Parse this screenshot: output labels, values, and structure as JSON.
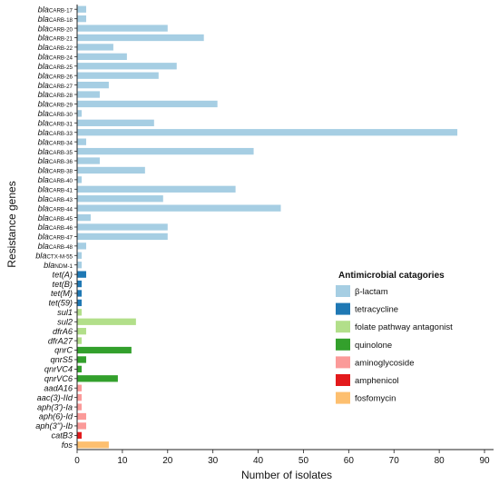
{
  "chart_data": {
    "type": "bar",
    "orientation": "horizontal",
    "xlabel": "Number of isolates",
    "ylabel": "Resistance genes",
    "xlim": [
      0,
      92
    ],
    "xticks": [
      0,
      10,
      20,
      30,
      40,
      50,
      60,
      70,
      80,
      90
    ],
    "grid": false,
    "legend": {
      "title": "Antimicrobial catagories",
      "placement": "bottom-right",
      "entries": [
        {
          "name": "β-lactam",
          "color": "#a6cee3"
        },
        {
          "name": "tetracycline",
          "color": "#1f78b4"
        },
        {
          "name": "folate pathway antagonist",
          "color": "#b2df8a"
        },
        {
          "name": "quinolone",
          "color": "#33a02c"
        },
        {
          "name": "aminoglycoside",
          "color": "#fb9a99"
        },
        {
          "name": "amphenicol",
          "color": "#e31a1c"
        },
        {
          "name": "fosfomycin",
          "color": "#fdbf6f"
        }
      ]
    },
    "bars": [
      {
        "prefix": "bla",
        "sub": "CARB-17",
        "value": 2,
        "category": 0
      },
      {
        "prefix": "bla",
        "sub": "CARB-18",
        "value": 2,
        "category": 0
      },
      {
        "prefix": "bla",
        "sub": "CARB-20",
        "value": 20,
        "category": 0
      },
      {
        "prefix": "bla",
        "sub": "CARB-21",
        "value": 28,
        "category": 0
      },
      {
        "prefix": "bla",
        "sub": "CARB-22",
        "value": 8,
        "category": 0
      },
      {
        "prefix": "bla",
        "sub": "CARB-24",
        "value": 11,
        "category": 0
      },
      {
        "prefix": "bla",
        "sub": "CARB-25",
        "value": 22,
        "category": 0
      },
      {
        "prefix": "bla",
        "sub": "CARB-26",
        "value": 18,
        "category": 0
      },
      {
        "prefix": "bla",
        "sub": "CARB-27",
        "value": 7,
        "category": 0
      },
      {
        "prefix": "bla",
        "sub": "CARB-28",
        "value": 5,
        "category": 0
      },
      {
        "prefix": "bla",
        "sub": "CARB-29",
        "value": 31,
        "category": 0
      },
      {
        "prefix": "bla",
        "sub": "CARB-30",
        "value": 1,
        "category": 0
      },
      {
        "prefix": "bla",
        "sub": "CARB-31",
        "value": 17,
        "category": 0
      },
      {
        "prefix": "bla",
        "sub": "CARB-33",
        "value": 84,
        "category": 0
      },
      {
        "prefix": "bla",
        "sub": "CARB-34",
        "value": 2,
        "category": 0
      },
      {
        "prefix": "bla",
        "sub": "CARB-35",
        "value": 39,
        "category": 0
      },
      {
        "prefix": "bla",
        "sub": "CARB-36",
        "value": 5,
        "category": 0
      },
      {
        "prefix": "bla",
        "sub": "CARB-38",
        "value": 15,
        "category": 0
      },
      {
        "prefix": "bla",
        "sub": "CARB-40",
        "value": 1,
        "category": 0
      },
      {
        "prefix": "bla",
        "sub": "CARB-41",
        "value": 35,
        "category": 0
      },
      {
        "prefix": "bla",
        "sub": "CARB-43",
        "value": 19,
        "category": 0
      },
      {
        "prefix": "bla",
        "sub": "CARB-44",
        "value": 45,
        "category": 0
      },
      {
        "prefix": "bla",
        "sub": "CARB-45",
        "value": 3,
        "category": 0
      },
      {
        "prefix": "bla",
        "sub": "CARB-46",
        "value": 20,
        "category": 0
      },
      {
        "prefix": "bla",
        "sub": "CARB-47",
        "value": 20,
        "category": 0
      },
      {
        "prefix": "bla",
        "sub": "CARB-48",
        "value": 2,
        "category": 0
      },
      {
        "prefix": "bla",
        "sub": "CTX-M-55",
        "value": 1,
        "category": 0
      },
      {
        "prefix": "bla",
        "sub": "NDM-1",
        "value": 1,
        "category": 0
      },
      {
        "prefix": "tet(A)",
        "sub": "",
        "value": 2,
        "category": 1
      },
      {
        "prefix": "tet(B)",
        "sub": "",
        "value": 1,
        "category": 1
      },
      {
        "prefix": "tet(M)",
        "sub": "",
        "value": 1,
        "category": 1
      },
      {
        "prefix": "tet(59)",
        "sub": "",
        "value": 1,
        "category": 1
      },
      {
        "prefix": "sul1",
        "sub": "",
        "value": 1,
        "category": 2
      },
      {
        "prefix": "sul2",
        "sub": "",
        "value": 13,
        "category": 2
      },
      {
        "prefix": "dfrA6",
        "sub": "",
        "value": 2,
        "category": 2
      },
      {
        "prefix": "dfrA27",
        "sub": "",
        "value": 1,
        "category": 2
      },
      {
        "prefix": "qnrC",
        "sub": "",
        "value": 12,
        "category": 3
      },
      {
        "prefix": "qnrS5",
        "sub": "",
        "value": 2,
        "category": 3
      },
      {
        "prefix": "qnrVC4",
        "sub": "",
        "value": 1,
        "category": 3
      },
      {
        "prefix": "qnrVC6",
        "sub": "",
        "value": 9,
        "category": 3
      },
      {
        "prefix": "aadA16",
        "sub": "",
        "value": 1,
        "category": 4
      },
      {
        "prefix": "aac(3)-IId",
        "sub": "",
        "value": 1,
        "category": 4
      },
      {
        "prefix": "aph(3')-Ia",
        "sub": "",
        "value": 1,
        "category": 4
      },
      {
        "prefix": "aph(6)-Id",
        "sub": "",
        "value": 2,
        "category": 4
      },
      {
        "prefix": "aph(3'')-Ib",
        "sub": "",
        "value": 2,
        "category": 4
      },
      {
        "prefix": "catB3",
        "sub": "",
        "value": 1,
        "category": 5
      },
      {
        "prefix": "fos",
        "sub": "",
        "value": 7,
        "category": 6
      }
    ]
  }
}
